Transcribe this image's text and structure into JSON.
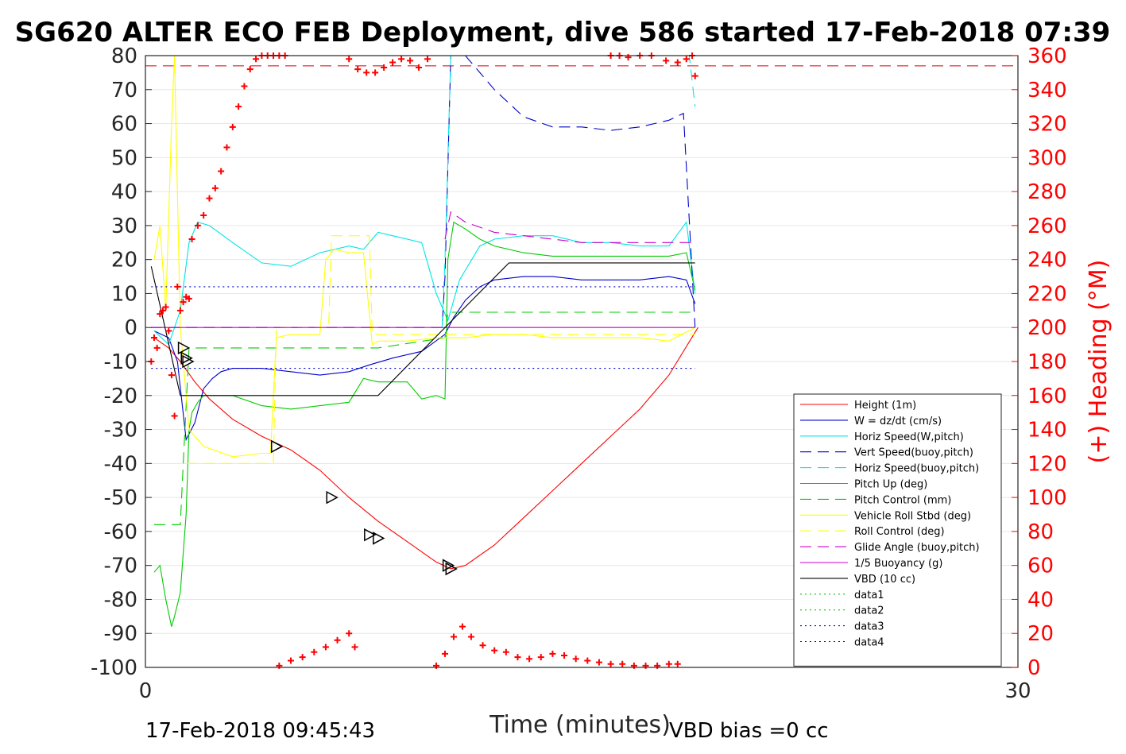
{
  "chart_data": {
    "type": "line",
    "title": "SG620 ALTER ECO FEB Deployment, dive 586 started 17-Feb-2018 07:39",
    "xlabel": "Time (minutes)",
    "ylabel_right": "(+) Heading (°M)",
    "xlim": [
      0,
      30
    ],
    "ylim": [
      -100,
      80
    ],
    "y2lim": [
      0,
      360
    ],
    "xticks": [
      "0",
      "30"
    ],
    "yticks": [
      "80",
      "70",
      "60",
      "50",
      "40",
      "30",
      "20",
      "10",
      "0",
      "-10",
      "-20",
      "-30",
      "-40",
      "-50",
      "-60",
      "-70",
      "-80",
      "-90",
      "-100"
    ],
    "y2ticks": [
      "360",
      "340",
      "320",
      "300",
      "280",
      "260",
      "240",
      "220",
      "200",
      "180",
      "160",
      "140",
      "120",
      "100",
      "80",
      "60",
      "40",
      "20",
      "0"
    ],
    "grid": true,
    "legend_position": "lower-right",
    "footer_left": "17-Feb-2018 09:45:43",
    "footer_right": "VBD bias =0 cc",
    "series": [
      {
        "name": "Height (1m)",
        "color": "#ff0000",
        "style": "solid",
        "x": [
          0.3,
          0.8,
          1.2,
          1.7,
          2.2,
          3,
          4,
          5,
          6,
          7,
          8,
          9,
          10,
          10.5,
          11,
          12,
          13,
          14,
          15,
          16,
          17,
          18,
          19
        ],
        "y": [
          -3,
          -6,
          -10,
          -16,
          -21,
          -27,
          -32,
          -36,
          -42,
          -50,
          -57,
          -63,
          -69,
          -71,
          -70,
          -64,
          -56,
          -48,
          -40,
          -32,
          -24,
          -14,
          0
        ]
      },
      {
        "name": "W = dz/dt (cm/s)",
        "color": "#0000cc",
        "style": "solid",
        "x": [
          0.3,
          0.8,
          1.1,
          1.4,
          1.7,
          2.0,
          2.3,
          2.6,
          3,
          4,
          5,
          6,
          7,
          7.7,
          8.5,
          9.5,
          10.3,
          10.6,
          11,
          11.5,
          12,
          13,
          14,
          15,
          16,
          17,
          18,
          18.6,
          18.9
        ],
        "y": [
          -1,
          -3,
          -10,
          -33,
          -28,
          -18,
          -15,
          -13,
          -12,
          -12,
          -13,
          -14,
          -13,
          -11,
          -9,
          -7,
          -2,
          3,
          8,
          12,
          14,
          15,
          15,
          14,
          14,
          14,
          15,
          14,
          7
        ]
      },
      {
        "name": "Horiz Speed(W,pitch)",
        "color": "#00e5e5",
        "style": "solid",
        "x": [
          0.3,
          0.8,
          1.2,
          1.5,
          1.8,
          2.2,
          3,
          4,
          5,
          6,
          7,
          7.5,
          8,
          8.5,
          9.5,
          10,
          10.4,
          10.8,
          11.5,
          12,
          13,
          14,
          15,
          16,
          17,
          18,
          18.6,
          18.9
        ],
        "y": [
          -1,
          -5,
          5,
          25,
          31,
          30,
          25,
          19,
          18,
          22,
          24,
          23,
          28,
          27,
          25,
          10,
          2,
          14,
          24,
          26,
          27,
          27,
          25,
          25,
          24,
          24,
          31,
          10
        ]
      },
      {
        "name": "Vert Speed(buoy,pitch)",
        "color": "#0000cc",
        "style": "dashed",
        "x": [
          0.2,
          10.2,
          10.3,
          10.5,
          11,
          11.5,
          12,
          13,
          14,
          15,
          16,
          17,
          18,
          18.5,
          18.9
        ],
        "y": [
          0,
          0,
          15,
          80,
          80,
          75,
          70,
          62,
          59,
          59,
          58,
          59,
          61,
          63,
          0
        ]
      },
      {
        "name": "Horiz Speed(buoy,pitch)",
        "color": "#00e5e5",
        "style": "dashed",
        "x": [
          10.2,
          10.3,
          10.5,
          11,
          18.7,
          18.9
        ],
        "y": [
          0,
          20,
          80,
          80,
          80,
          65
        ]
      },
      {
        "name": "Pitch Up (deg)",
        "color": "#00cc00",
        "style": "solid",
        "x": [
          0.3,
          0.5,
          0.7,
          0.9,
          1.0,
          1.2,
          1.4,
          1.5,
          1.6,
          1.8,
          2.0,
          2.4,
          3,
          4,
          5,
          6,
          7,
          7.5,
          8,
          9,
          9.5,
          10,
          10.3,
          10.4,
          10.6,
          11,
          11.5,
          12,
          13,
          14,
          15,
          16,
          17,
          18,
          18.6,
          18.9
        ],
        "y": [
          -72,
          -70,
          -80,
          -88,
          -85,
          -78,
          -55,
          -30,
          -25,
          -22,
          -20,
          -20,
          -20,
          -23,
          -24,
          -23,
          -22,
          -15,
          -16,
          -16,
          -21,
          -20,
          -21,
          20,
          31,
          29,
          26,
          24,
          22,
          21,
          21,
          21,
          21,
          21,
          22,
          11
        ]
      },
      {
        "name": "Pitch Control (mm)",
        "color": "#00cc00",
        "style": "dashed",
        "x": [
          0.3,
          1.0,
          1.2,
          1.3,
          1.5,
          8,
          10.3,
          10.4,
          18.9
        ],
        "y": [
          -58,
          -58,
          -58,
          -40,
          -6,
          -6,
          -3,
          4.5,
          4.5
        ]
      },
      {
        "name": "Vehicle Roll Stbd (deg)",
        "color": "#ffff00",
        "style": "solid",
        "x": [
          0.3,
          0.5,
          0.7,
          0.9,
          1.0,
          1.2,
          1.5,
          2,
          3,
          4,
          4.3,
          4.5,
          5,
          6,
          6.2,
          6.5,
          7,
          7.5,
          7.8,
          8,
          9,
          10,
          10.3,
          11,
          12,
          13,
          14,
          15,
          16,
          17,
          18,
          18.9
        ],
        "y": [
          20,
          30,
          5,
          60,
          80,
          0,
          -30,
          -35,
          -38,
          -37,
          -37,
          -3,
          -2,
          -2,
          20,
          23,
          22,
          22,
          -5,
          -4,
          -4,
          -3,
          -3,
          -3,
          -2,
          -2,
          -3,
          -3,
          -3,
          -3,
          -4,
          0
        ]
      },
      {
        "name": "Roll Control (deg)",
        "color": "#ffff00",
        "style": "dashed",
        "x": [
          1.4,
          4.4,
          4.5,
          6.3,
          6.4,
          7.7,
          7.8,
          18.9
        ],
        "y": [
          -40,
          -40,
          0,
          0,
          27,
          27,
          -2,
          -2
        ]
      },
      {
        "name": "Glide Angle (buoy,pitch)",
        "color": "#cc00cc",
        "style": "dashed",
        "x": [
          10.3,
          10.5,
          11,
          12,
          13,
          14,
          15,
          16,
          17,
          18,
          18.9
        ],
        "y": [
          26,
          34,
          31,
          28,
          27,
          26,
          25,
          25,
          25,
          25,
          25
        ]
      },
      {
        "name": "1/5 Buoyancy (g)",
        "color": "#cc00cc",
        "style": "solid",
        "x": [
          0.2,
          18.9
        ],
        "y": [
          0,
          0
        ]
      },
      {
        "name": "VBD (10 cc)",
        "color": "#000000",
        "style": "solid",
        "x": [
          0.2,
          1.2,
          8,
          10.3,
          12.5,
          18.9
        ],
        "y": [
          18,
          -20,
          -20,
          0,
          19,
          19
        ]
      },
      {
        "name": "data1",
        "color": "#00cc00",
        "style": "dotted",
        "x": [],
        "y": []
      },
      {
        "name": "data2",
        "color": "#00cc00",
        "style": "dotted",
        "x": [],
        "y": []
      },
      {
        "name": "data3",
        "color": "#0000cc",
        "style": "dotted",
        "x": [
          0.2,
          18.9
        ],
        "y": [
          12,
          12
        ]
      },
      {
        "name": "data4",
        "color": "#0000cc",
        "style": "dotted",
        "x": [
          0.2,
          18.9
        ],
        "y": [
          -12,
          -12
        ]
      }
    ],
    "reference_lines": [
      {
        "color": "#cc0000",
        "style": "dashed",
        "y2": 354
      }
    ],
    "heading_points": {
      "color": "#ff0000",
      "marker": "+",
      "x": [
        0.2,
        0.3,
        0.4,
        0.5,
        0.6,
        0.7,
        0.8,
        0.9,
        1.0,
        1.1,
        1.2,
        1.3,
        1.4,
        1.5,
        1.6,
        1.8,
        2.0,
        2.2,
        2.4,
        2.6,
        2.8,
        3.0,
        3.2,
        3.4,
        3.6,
        3.8,
        4.0,
        4.2,
        4.4,
        4.6,
        4.8,
        7.0,
        7.3,
        7.6,
        7.9,
        8.2,
        8.5,
        8.8,
        9.1,
        9.4,
        9.7,
        4.6,
        5.0,
        5.4,
        5.8,
        6.2,
        6.6,
        7.0,
        7.2,
        10.0,
        10.3,
        10.6,
        10.9,
        11.2,
        11.6,
        12.0,
        12.4,
        12.8,
        13.2,
        13.6,
        14.0,
        14.4,
        14.8,
        15.2,
        15.6,
        16.0,
        16.4,
        16.8,
        17.2,
        17.6,
        18.0,
        18.3,
        16.0,
        16.3,
        16.6,
        17.0,
        17.4,
        17.9,
        18.3,
        18.6,
        18.8,
        18.9
      ],
      "y2": [
        180,
        194,
        188,
        208,
        210,
        212,
        198,
        172,
        148,
        224,
        210,
        215,
        218,
        217,
        252,
        260,
        266,
        276,
        282,
        292,
        306,
        318,
        330,
        342,
        352,
        358,
        360,
        360,
        360,
        360,
        360,
        358,
        352,
        350,
        350,
        353,
        356,
        358,
        357,
        353,
        358,
        1,
        4,
        6,
        9,
        12,
        16,
        20,
        12,
        1,
        8,
        18,
        24,
        18,
        13,
        10,
        9,
        6,
        5,
        6,
        8,
        7,
        5,
        4,
        3,
        2,
        2,
        1,
        1,
        1,
        2,
        2,
        360,
        360,
        359,
        360,
        360,
        357,
        356,
        358,
        360,
        348
      ]
    },
    "marker_points": {
      "color": "#000000",
      "marker": "triangle",
      "x": [
        1.3,
        1.4,
        1.45,
        4.5,
        6.4,
        7.7,
        8.0,
        10.4,
        10.5
      ],
      "y": [
        -6,
        -9,
        -10,
        -35,
        -50,
        -61,
        -62,
        -70,
        -71
      ]
    }
  }
}
